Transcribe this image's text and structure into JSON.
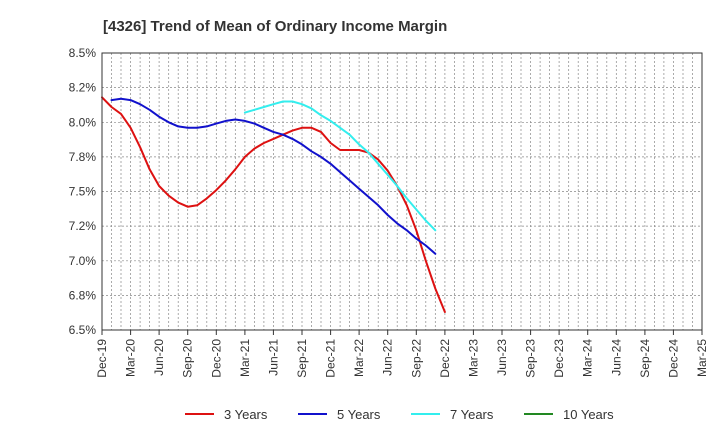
{
  "chart_data": {
    "type": "line",
    "title": "[4326]  Trend of Mean of Ordinary Income Margin",
    "xlabel": "",
    "ylabel": "",
    "ylim": [
      6.5,
      8.5
    ],
    "yticks": [
      "6.5%",
      "6.8%",
      "7.0%",
      "7.2%",
      "7.5%",
      "7.8%",
      "8.0%",
      "8.2%",
      "8.5%"
    ],
    "ytick_values": [
      6.5,
      6.75,
      7.0,
      7.25,
      7.5,
      7.75,
      8.0,
      8.25,
      8.5
    ],
    "xticks": [
      "Dec-19",
      "Mar-20",
      "Jun-20",
      "Sep-20",
      "Dec-20",
      "Mar-21",
      "Jun-21",
      "Sep-21",
      "Dec-21",
      "Mar-22",
      "Jun-22",
      "Sep-22",
      "Dec-22",
      "Mar-23",
      "Jun-23",
      "Sep-23",
      "Dec-23",
      "Mar-24",
      "Jun-24",
      "Sep-24",
      "Dec-24",
      "Mar-25"
    ],
    "grid": true,
    "legend_position": "bottom",
    "series": [
      {
        "name": "3 Years",
        "color": "#dd1111",
        "values": [
          8.18,
          8.11,
          8.06,
          7.96,
          7.82,
          7.66,
          7.54,
          7.47,
          7.42,
          7.39,
          7.4,
          7.45,
          7.51,
          7.58,
          7.66,
          7.75,
          7.81,
          7.85,
          7.88,
          7.91,
          7.94,
          7.96,
          7.96,
          7.93,
          7.85,
          7.8,
          7.8,
          7.8,
          7.78,
          7.73,
          7.65,
          7.54,
          7.4,
          7.22,
          7.0,
          6.8,
          6.63
        ]
      },
      {
        "name": "5 Years",
        "color": "#1111cc",
        "values": [
          null,
          8.16,
          8.17,
          8.16,
          8.13,
          8.09,
          8.04,
          8.0,
          7.97,
          7.96,
          7.96,
          7.97,
          7.99,
          8.01,
          8.02,
          8.01,
          7.99,
          7.96,
          7.93,
          7.91,
          7.88,
          7.84,
          7.79,
          7.75,
          7.7,
          7.64,
          7.58,
          7.52,
          7.46,
          7.4,
          7.33,
          7.27,
          7.22,
          7.16,
          7.11,
          7.05
        ]
      },
      {
        "name": "7 Years",
        "color": "#33eeee",
        "values": [
          null,
          null,
          null,
          null,
          null,
          null,
          null,
          null,
          null,
          null,
          null,
          null,
          null,
          null,
          null,
          8.07,
          8.09,
          8.11,
          8.13,
          8.15,
          8.15,
          8.13,
          8.1,
          8.05,
          8.01,
          7.96,
          7.91,
          7.84,
          7.78,
          7.7,
          7.62,
          7.54,
          7.45,
          7.37,
          7.29,
          7.22
        ]
      },
      {
        "name": "10 Years",
        "color": "#228822",
        "values": []
      }
    ]
  }
}
